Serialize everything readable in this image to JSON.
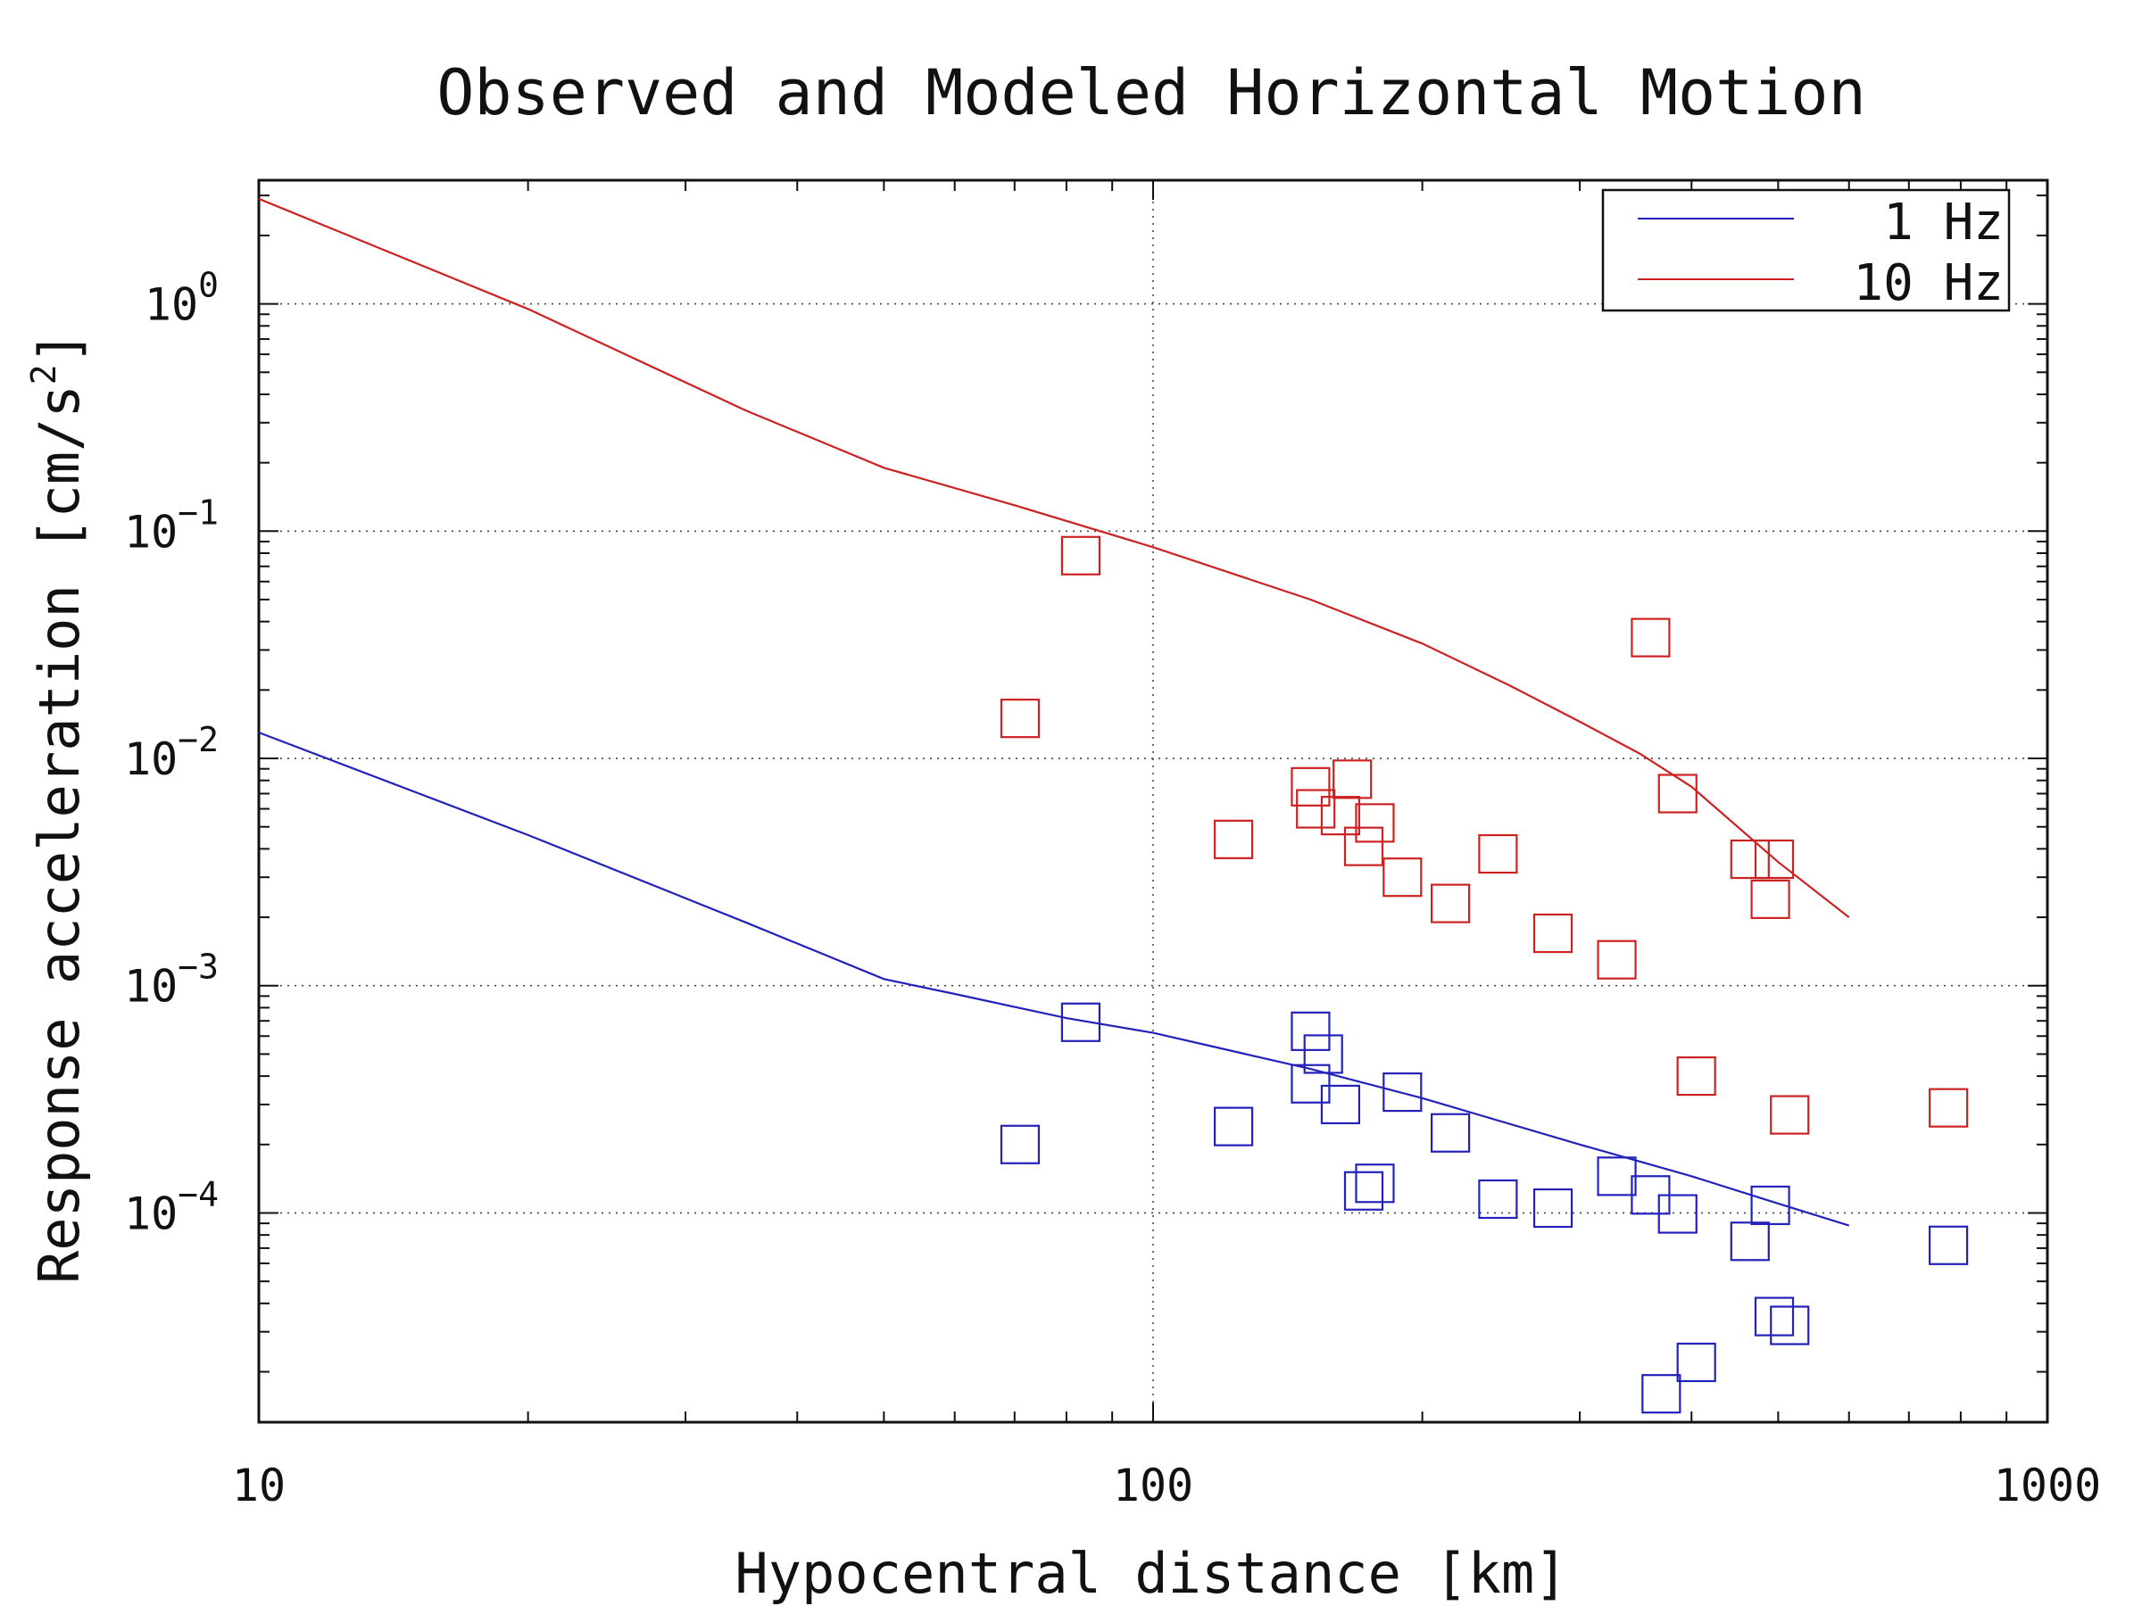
{
  "chart_data": {
    "type": "scatter",
    "title": "Observed and Modeled Horizontal Motion",
    "xlabel": "Hypocentral distance [km]",
    "ylabel": "Response acceleration [cm/s^2]",
    "xscale": "log",
    "yscale": "log",
    "xlim": [
      10,
      1000
    ],
    "ylim": [
      1.2e-05,
      3.5
    ],
    "x_ticks": [
      {
        "value": 10,
        "label": "10"
      },
      {
        "value": 100,
        "label": "100"
      },
      {
        "value": 1000,
        "label": "1000"
      }
    ],
    "y_ticks": [
      {
        "value": 1,
        "base": "10",
        "exp": "0"
      },
      {
        "value": 0.1,
        "base": "10",
        "exp": "−1"
      },
      {
        "value": 0.01,
        "base": "10",
        "exp": "−2"
      },
      {
        "value": 0.001,
        "base": "10",
        "exp": "−3"
      },
      {
        "value": 0.0001,
        "base": "10",
        "exp": "−4"
      }
    ],
    "grid": true,
    "legend_position": "top-right",
    "series": [
      {
        "name": "1 Hz",
        "color": "#2222bb",
        "model": {
          "x": [
            10,
            20,
            35,
            50,
            60,
            80,
            100,
            150,
            200,
            300,
            400,
            500,
            600
          ],
          "y": [
            0.013,
            0.0046,
            0.0019,
            0.00107,
            0.00092,
            0.00072,
            0.00062,
            0.00043,
            0.00032,
            0.0002,
            0.000145,
            0.00011,
            8.8e-05
          ]
        },
        "observed": {
          "x": [
            71,
            83,
            123,
            150,
            150,
            155,
            162,
            172,
            177,
            190,
            215,
            243,
            280,
            330,
            360,
            386,
            405,
            465,
            490,
            495,
            515,
            775,
            370
          ],
          "y": [
            0.0002,
            0.00069,
            0.00024,
            0.00063,
            0.00037,
            0.0005,
            0.0003,
            0.000125,
            0.000135,
            0.00034,
            0.000225,
            0.000115,
            0.000105,
            0.000145,
            0.00012,
            9.9e-05,
            2.2e-05,
            7.5e-05,
            0.000108,
            3.5e-05,
            3.2e-05,
            7.2e-05,
            1.6e-05
          ]
        }
      },
      {
        "name": "10 Hz",
        "color": "#cc2222",
        "model": {
          "x": [
            10,
            20,
            35,
            50,
            70,
            100,
            150,
            200,
            250,
            300,
            350,
            400,
            500,
            600
          ],
          "y": [
            2.9,
            0.95,
            0.34,
            0.19,
            0.13,
            0.085,
            0.05,
            0.032,
            0.021,
            0.0145,
            0.0105,
            0.0075,
            0.0035,
            0.002
          ]
        },
        "observed": {
          "x": [
            71,
            83,
            123,
            150,
            152,
            162,
            167,
            172,
            177,
            190,
            215,
            243,
            280,
            330,
            360,
            386,
            405,
            465,
            490,
            495,
            515,
            775
          ],
          "y": [
            0.015,
            0.078,
            0.0044,
            0.0075,
            0.006,
            0.0056,
            0.0081,
            0.0041,
            0.0052,
            0.003,
            0.0023,
            0.0038,
            0.0017,
            0.0013,
            0.034,
            0.007,
            0.0004,
            0.0036,
            0.0024,
            0.0036,
            0.00027,
            0.00029
          ]
        }
      }
    ]
  }
}
